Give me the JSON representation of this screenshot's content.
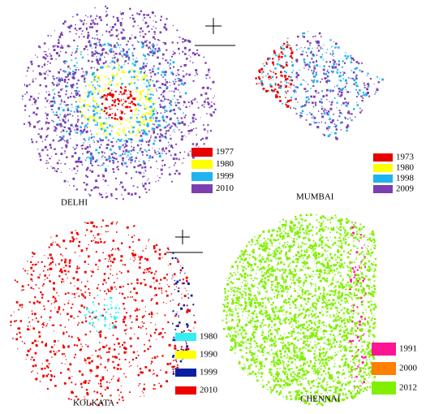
{
  "panels": [
    {
      "name": "DELHI",
      "legend": [
        {
          "label": "1977",
          "color": "#e60000"
        },
        {
          "label": "1980",
          "color": "#ffff00"
        },
        {
          "label": "1999",
          "color": "#1fb4f0"
        },
        {
          "label": "2010",
          "color": "#7b3fb0"
        }
      ]
    },
    {
      "name": "MUMBAI",
      "legend": [
        {
          "label": "1973",
          "color": "#e60000"
        },
        {
          "label": "1980",
          "color": "#ffff00"
        },
        {
          "label": "1998",
          "color": "#1fb4f0"
        },
        {
          "label": "2009",
          "color": "#7b3fb0"
        }
      ]
    },
    {
      "name": "KOLKATA",
      "legend": [
        {
          "label": "1980",
          "color": "#33f0f0"
        },
        {
          "label": "1990",
          "color": "#ffff00"
        },
        {
          "label": "1999",
          "color": "#0a1fa0"
        },
        {
          "label": "2010",
          "color": "#ee0000"
        }
      ]
    },
    {
      "name": "CHENNAI",
      "legend": [
        {
          "label": "1991",
          "color": "#ff1493"
        },
        {
          "label": "2000",
          "color": "#ff7f00"
        },
        {
          "label": "2012",
          "color": "#80f000"
        }
      ]
    }
  ]
}
